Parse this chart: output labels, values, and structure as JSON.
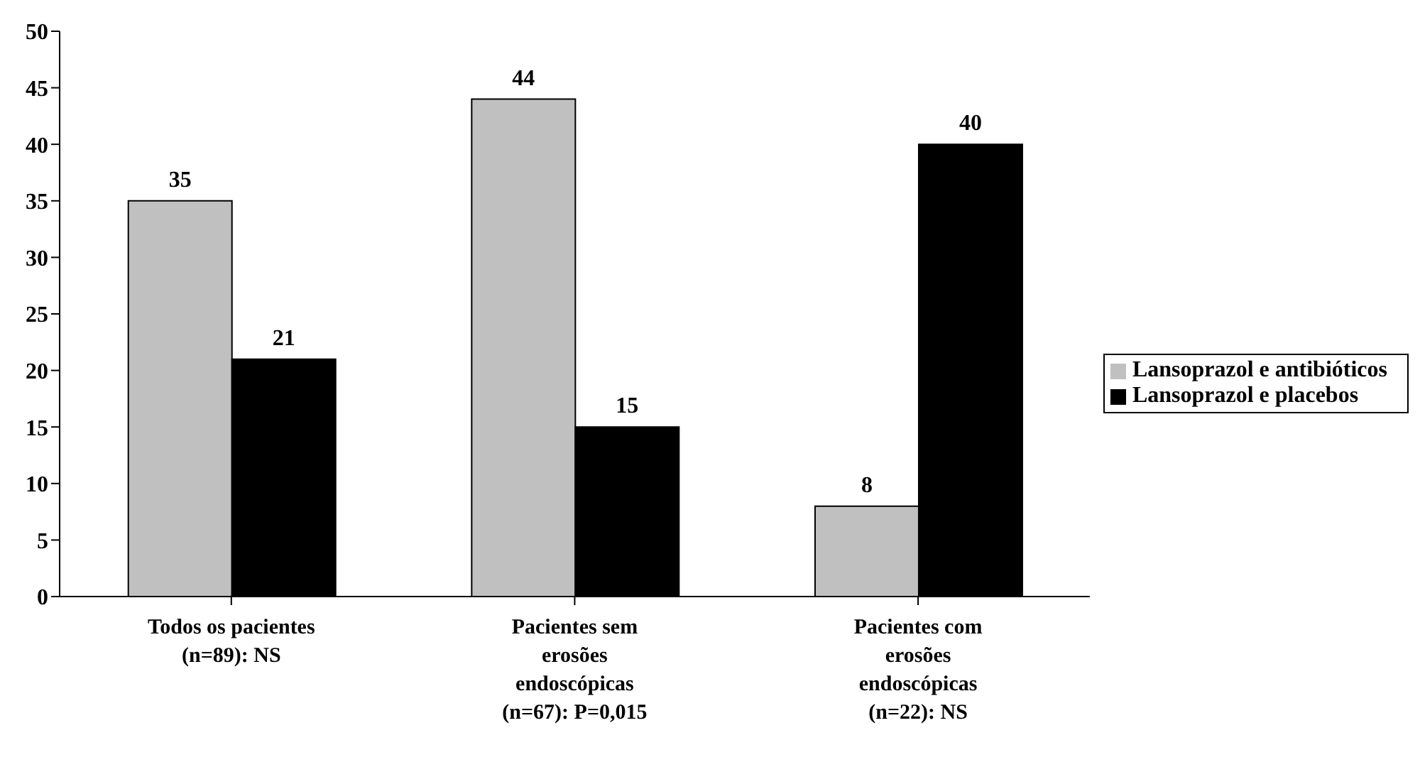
{
  "chart_data": {
    "type": "bar",
    "categories": [
      "Todos os pacientes (n=89): NS",
      "Pacientes sem erosões endoscópicas (n=67): P=0,015",
      "Pacientes com erosões endoscópicas (n=22): NS"
    ],
    "series": [
      {
        "name": "Lansoprazol e antibióticos",
        "color": "#c0c0c0",
        "values": [
          35,
          44,
          8
        ]
      },
      {
        "name": "Lansoprazol e placebos",
        "color": "#000000",
        "values": [
          21,
          15,
          40
        ]
      }
    ],
    "ylim": [
      0,
      50
    ],
    "yticks": [
      0,
      5,
      10,
      15,
      20,
      25,
      30,
      35,
      40,
      45,
      50
    ],
    "data_labels": true,
    "legend": "right",
    "grid": false
  }
}
